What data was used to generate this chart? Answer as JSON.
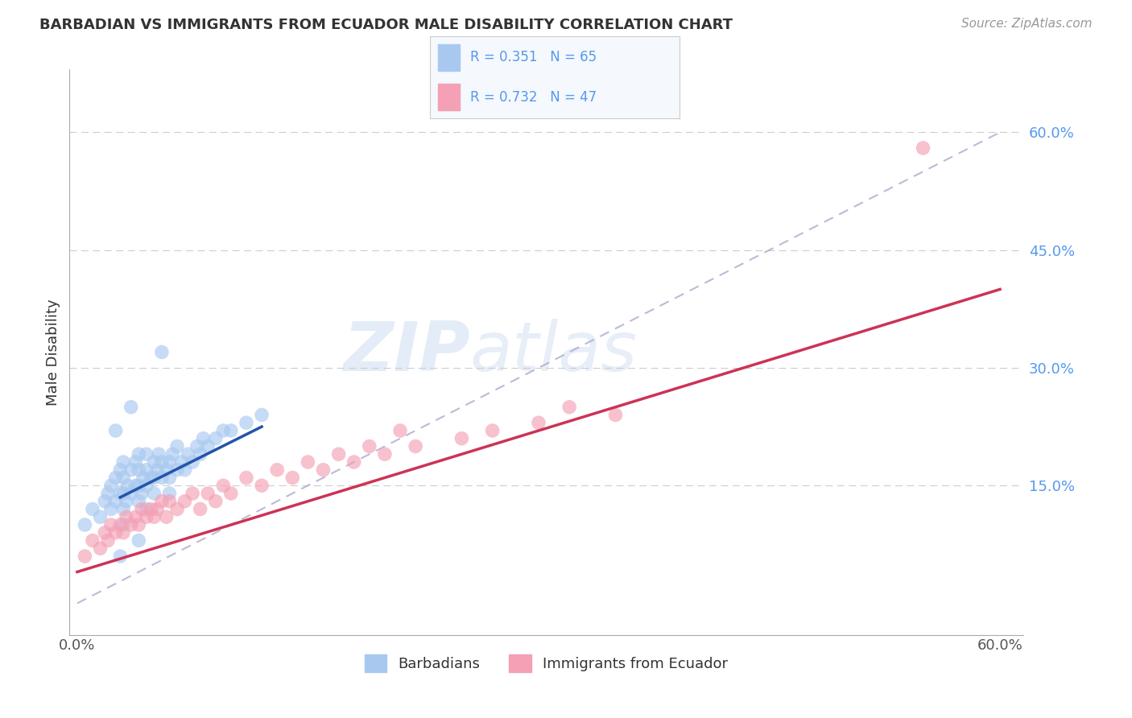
{
  "title": "BARBADIAN VS IMMIGRANTS FROM ECUADOR MALE DISABILITY CORRELATION CHART",
  "source": "Source: ZipAtlas.com",
  "ylabel": "Male Disability",
  "xlim": [
    -0.005,
    0.615
  ],
  "ylim": [
    -0.04,
    0.68
  ],
  "ytick_labels": [
    "15.0%",
    "30.0%",
    "45.0%",
    "60.0%"
  ],
  "ytick_values": [
    0.15,
    0.3,
    0.45,
    0.6
  ],
  "watermark_zip": "ZIP",
  "watermark_atlas": "atlas",
  "color_blue": "#A8C8F0",
  "color_pink": "#F4A0B5",
  "color_blue_line": "#2255AA",
  "color_pink_line": "#CC3355",
  "color_diag": "#AAAACC",
  "blue_scatter_x": [
    0.005,
    0.01,
    0.015,
    0.018,
    0.02,
    0.022,
    0.022,
    0.025,
    0.025,
    0.028,
    0.028,
    0.03,
    0.03,
    0.03,
    0.03,
    0.032,
    0.033,
    0.035,
    0.035,
    0.038,
    0.038,
    0.04,
    0.04,
    0.04,
    0.04,
    0.042,
    0.043,
    0.045,
    0.045,
    0.045,
    0.048,
    0.05,
    0.05,
    0.05,
    0.052,
    0.053,
    0.055,
    0.055,
    0.058,
    0.06,
    0.06,
    0.062,
    0.065,
    0.065,
    0.068,
    0.07,
    0.072,
    0.075,
    0.078,
    0.08,
    0.082,
    0.085,
    0.09,
    0.095,
    0.1,
    0.11,
    0.12,
    0.03,
    0.045,
    0.06,
    0.025,
    0.035,
    0.055,
    0.04,
    0.028
  ],
  "blue_scatter_y": [
    0.1,
    0.12,
    0.11,
    0.13,
    0.14,
    0.12,
    0.15,
    0.13,
    0.16,
    0.14,
    0.17,
    0.12,
    0.14,
    0.16,
    0.18,
    0.13,
    0.15,
    0.14,
    0.17,
    0.15,
    0.18,
    0.13,
    0.15,
    0.17,
    0.19,
    0.14,
    0.16,
    0.15,
    0.17,
    0.19,
    0.16,
    0.14,
    0.16,
    0.18,
    0.17,
    0.19,
    0.16,
    0.18,
    0.17,
    0.16,
    0.18,
    0.19,
    0.17,
    0.2,
    0.18,
    0.17,
    0.19,
    0.18,
    0.2,
    0.19,
    0.21,
    0.2,
    0.21,
    0.22,
    0.22,
    0.23,
    0.24,
    0.1,
    0.12,
    0.14,
    0.22,
    0.25,
    0.32,
    0.08,
    0.06
  ],
  "pink_scatter_x": [
    0.005,
    0.01,
    0.015,
    0.018,
    0.02,
    0.022,
    0.025,
    0.028,
    0.03,
    0.032,
    0.035,
    0.038,
    0.04,
    0.042,
    0.045,
    0.048,
    0.05,
    0.052,
    0.055,
    0.058,
    0.06,
    0.065,
    0.07,
    0.075,
    0.08,
    0.085,
    0.09,
    0.095,
    0.1,
    0.11,
    0.12,
    0.13,
    0.14,
    0.15,
    0.16,
    0.17,
    0.18,
    0.19,
    0.2,
    0.21,
    0.22,
    0.25,
    0.27,
    0.3,
    0.32,
    0.35,
    0.55
  ],
  "pink_scatter_y": [
    0.06,
    0.08,
    0.07,
    0.09,
    0.08,
    0.1,
    0.09,
    0.1,
    0.09,
    0.11,
    0.1,
    0.11,
    0.1,
    0.12,
    0.11,
    0.12,
    0.11,
    0.12,
    0.13,
    0.11,
    0.13,
    0.12,
    0.13,
    0.14,
    0.12,
    0.14,
    0.13,
    0.15,
    0.14,
    0.16,
    0.15,
    0.17,
    0.16,
    0.18,
    0.17,
    0.19,
    0.18,
    0.2,
    0.19,
    0.22,
    0.2,
    0.21,
    0.22,
    0.23,
    0.25,
    0.24,
    0.58
  ],
  "blue_line_x": [
    0.028,
    0.12
  ],
  "blue_line_y": [
    0.135,
    0.225
  ],
  "pink_line_x": [
    0.0,
    0.6
  ],
  "pink_line_y": [
    0.04,
    0.4
  ]
}
